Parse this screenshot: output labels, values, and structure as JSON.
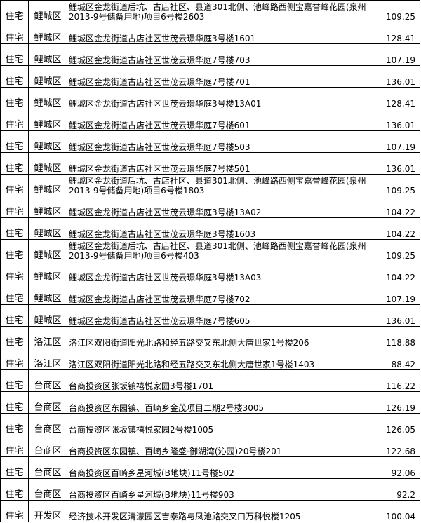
{
  "table": {
    "rows": [
      [
        "住宅",
        "鲤城区",
        "鲤城区金龙街道后坑、古店社区、县道301北侧、池峰路西侧宝嘉誉峰花园(泉州2013-9号储备用地)项目6号楼2603",
        109.25
      ],
      [
        "住宅",
        "鲤城区",
        "鲤城区金龙街道古店社区世茂云璟华庭3号楼1601",
        128.41
      ],
      [
        "住宅",
        "鲤城区",
        "鲤城区金龙街道古店社区世茂云璟华庭7号楼703",
        107.19
      ],
      [
        "住宅",
        "鲤城区",
        "鲤城区金龙街道古店社区世茂云璟华庭7号楼701",
        136.01
      ],
      [
        "住宅",
        "鲤城区",
        "鲤城区金龙街道古店社区世茂云璟华庭3号楼13A01",
        128.41
      ],
      [
        "住宅",
        "鲤城区",
        "鲤城区金龙街道古店社区世茂云璟华庭7号楼601",
        136.01
      ],
      [
        "住宅",
        "鲤城区",
        "鲤城区金龙街道古店社区世茂云璟华庭7号楼503",
        107.19
      ],
      [
        "住宅",
        "鲤城区",
        "鲤城区金龙街道古店社区世茂云璟华庭7号楼501",
        136.01
      ],
      [
        "住宅",
        "鲤城区",
        "鲤城区金龙街道后坑、古店社区、县道301北侧、池峰路西侧宝嘉誉峰花园(泉州2013-9号储备用地)项目6号楼1803",
        109.25
      ],
      [
        "住宅",
        "鲤城区",
        "鲤城区金龙街道古店社区世茂云璟华庭3号楼13A02",
        104.22
      ],
      [
        "住宅",
        "鲤城区",
        "鲤城区金龙街道古店社区世茂云璟华庭3号楼1603",
        104.22
      ],
      [
        "住宅",
        "鲤城区",
        "鲤城区金龙街道后坑、古店社区、县道301北侧、池峰路西侧宝嘉誉峰花园(泉州2013-9号储备用地)项目6号楼403",
        109.25
      ],
      [
        "住宅",
        "鲤城区",
        "鲤城区金龙街道古店社区世茂云璟华庭3号楼13A03",
        104.22
      ],
      [
        "住宅",
        "鲤城区",
        "鲤城区金龙街道古店社区世茂云璟华庭7号楼702",
        107.19
      ],
      [
        "住宅",
        "鲤城区",
        "鲤城区金龙街道古店社区世茂云璟华庭7号楼605",
        136.01
      ],
      [
        "住宅",
        "洛江区",
        "洛江区双阳街道阳光北路和经五路交叉东北侧大唐世家1号楼206",
        118.88
      ],
      [
        "住宅",
        "洛江区",
        "洛江区双阳街道阳光北路和经五路交叉东北侧大唐世家1号楼1403",
        88.42
      ],
      [
        "住宅",
        "台商区",
        "台商投资区张坂镇禧悦家园3号楼1701",
        116.22
      ],
      [
        "住宅",
        "台商区",
        "台商投资区东园镇、百崎乡金茂项目二期2号楼3005",
        126.19
      ],
      [
        "住宅",
        "台商区",
        "台商投资区张坂镇禧悦家园2号楼1005",
        126.05
      ],
      [
        "住宅",
        "台商区",
        "台商投资区东园镇、百崎乡隆盛·御湖湾(沁园)20号楼201",
        122.68
      ],
      [
        "住宅",
        "台商区",
        "台商投资区百崎乡星河城(B地块)11号楼502",
        92.06
      ],
      [
        "住宅",
        "台商区",
        "台商投资区百崎乡星河城(B地块)11号楼903",
        92.2
      ],
      [
        "住宅",
        "开发区",
        "经济技术开发区清濛园区吉泰路与凤池路交叉口万科悦楼1205",
        100.04
      ]
    ]
  }
}
